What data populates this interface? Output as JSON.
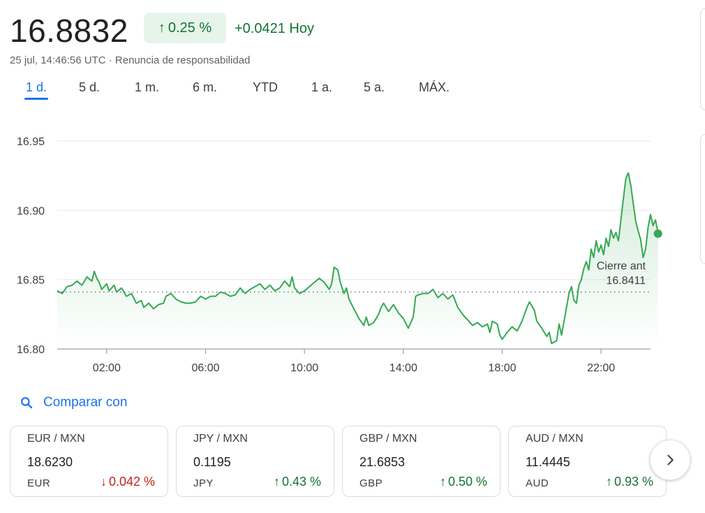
{
  "header": {
    "price": "16.8832",
    "change_pct": "0.25 %",
    "change_abs": "+0.0421 Hoy",
    "timestamp": "25 jul, 14:46:56 UTC · Renuncia de responsabilidad"
  },
  "tabs": [
    {
      "label": "1 d.",
      "active": true
    },
    {
      "label": "5 d.",
      "active": false
    },
    {
      "label": "1 m.",
      "active": false
    },
    {
      "label": "6 m.",
      "active": false
    },
    {
      "label": "YTD",
      "active": false
    },
    {
      "label": "1 a.",
      "active": false
    },
    {
      "label": "5 a.",
      "active": false
    },
    {
      "label": "MÁX.",
      "active": false
    }
  ],
  "chart_data": {
    "type": "line",
    "x_ticks": [
      "02:00",
      "06:00",
      "10:00",
      "14:00",
      "18:00",
      "22:00"
    ],
    "y_ticks": [
      "16.95",
      "16.90",
      "16.85",
      "16.80"
    ],
    "ylim": [
      16.8,
      16.95
    ],
    "x_range_hours": [
      0,
      24
    ],
    "grid": true,
    "line_color": "#34a853",
    "prev_close": {
      "label": "Cierre ant",
      "value": "16.8411",
      "y": 16.8411
    },
    "series": [
      {
        "values": [
          [
            0.0,
            16.842
          ],
          [
            0.2,
            16.84
          ],
          [
            0.4,
            16.845
          ],
          [
            0.6,
            16.846
          ],
          [
            0.8,
            16.849
          ],
          [
            1.0,
            16.846
          ],
          [
            1.2,
            16.852
          ],
          [
            1.4,
            16.849
          ],
          [
            1.5,
            16.856
          ],
          [
            1.6,
            16.851
          ],
          [
            1.7,
            16.848
          ],
          [
            1.8,
            16.843
          ],
          [
            2.0,
            16.847
          ],
          [
            2.1,
            16.842
          ],
          [
            2.3,
            16.846
          ],
          [
            2.4,
            16.841
          ],
          [
            2.6,
            16.844
          ],
          [
            2.8,
            16.838
          ],
          [
            3.0,
            16.84
          ],
          [
            3.2,
            16.833
          ],
          [
            3.4,
            16.835
          ],
          [
            3.5,
            16.83
          ],
          [
            3.7,
            16.833
          ],
          [
            3.9,
            16.829
          ],
          [
            4.1,
            16.832
          ],
          [
            4.3,
            16.833
          ],
          [
            4.4,
            16.838
          ],
          [
            4.6,
            16.84
          ],
          [
            4.8,
            16.836
          ],
          [
            5.0,
            16.834
          ],
          [
            5.2,
            16.833
          ],
          [
            5.4,
            16.833
          ],
          [
            5.6,
            16.834
          ],
          [
            5.8,
            16.838
          ],
          [
            6.0,
            16.836
          ],
          [
            6.2,
            16.838
          ],
          [
            6.4,
            16.838
          ],
          [
            6.6,
            16.841
          ],
          [
            6.8,
            16.84
          ],
          [
            7.0,
            16.838
          ],
          [
            7.2,
            16.839
          ],
          [
            7.4,
            16.844
          ],
          [
            7.6,
            16.84
          ],
          [
            7.8,
            16.843
          ],
          [
            8.0,
            16.845
          ],
          [
            8.2,
            16.847
          ],
          [
            8.4,
            16.843
          ],
          [
            8.6,
            16.846
          ],
          [
            8.8,
            16.842
          ],
          [
            9.0,
            16.844
          ],
          [
            9.2,
            16.849
          ],
          [
            9.4,
            16.845
          ],
          [
            9.5,
            16.852
          ],
          [
            9.6,
            16.844
          ],
          [
            9.8,
            16.84
          ],
          [
            10.0,
            16.842
          ],
          [
            10.2,
            16.845
          ],
          [
            10.4,
            16.848
          ],
          [
            10.6,
            16.851
          ],
          [
            10.8,
            16.848
          ],
          [
            11.0,
            16.843
          ],
          [
            11.1,
            16.847
          ],
          [
            11.2,
            16.859
          ],
          [
            11.35,
            16.857
          ],
          [
            11.45,
            16.848
          ],
          [
            11.6,
            16.84
          ],
          [
            11.7,
            16.844
          ],
          [
            11.8,
            16.836
          ],
          [
            12.0,
            16.829
          ],
          [
            12.2,
            16.822
          ],
          [
            12.4,
            16.817
          ],
          [
            12.5,
            16.823
          ],
          [
            12.6,
            16.817
          ],
          [
            12.8,
            16.819
          ],
          [
            13.0,
            16.825
          ],
          [
            13.1,
            16.83
          ],
          [
            13.2,
            16.833
          ],
          [
            13.4,
            16.827
          ],
          [
            13.6,
            16.832
          ],
          [
            13.8,
            16.826
          ],
          [
            14.0,
            16.822
          ],
          [
            14.2,
            16.815
          ],
          [
            14.4,
            16.823
          ],
          [
            14.5,
            16.838
          ],
          [
            14.6,
            16.839
          ],
          [
            14.8,
            16.84
          ],
          [
            15.0,
            16.84
          ],
          [
            15.2,
            16.843
          ],
          [
            15.4,
            16.837
          ],
          [
            15.6,
            16.84
          ],
          [
            15.8,
            16.836
          ],
          [
            16.0,
            16.839
          ],
          [
            16.2,
            16.83
          ],
          [
            16.4,
            16.825
          ],
          [
            16.6,
            16.821
          ],
          [
            16.8,
            16.817
          ],
          [
            17.0,
            16.819
          ],
          [
            17.2,
            16.816
          ],
          [
            17.4,
            16.818
          ],
          [
            17.5,
            16.812
          ],
          [
            17.6,
            16.82
          ],
          [
            17.8,
            16.818
          ],
          [
            17.9,
            16.81
          ],
          [
            18.0,
            16.807
          ],
          [
            18.2,
            16.812
          ],
          [
            18.4,
            16.816
          ],
          [
            18.6,
            16.813
          ],
          [
            18.8,
            16.82
          ],
          [
            19.0,
            16.83
          ],
          [
            19.1,
            16.834
          ],
          [
            19.3,
            16.828
          ],
          [
            19.4,
            16.82
          ],
          [
            19.6,
            16.815
          ],
          [
            19.8,
            16.809
          ],
          [
            19.9,
            16.812
          ],
          [
            20.0,
            16.804
          ],
          [
            20.2,
            16.806
          ],
          [
            20.3,
            16.818
          ],
          [
            20.4,
            16.81
          ],
          [
            20.6,
            16.83
          ],
          [
            20.7,
            16.84
          ],
          [
            20.8,
            16.845
          ],
          [
            20.9,
            16.835
          ],
          [
            21.0,
            16.833
          ],
          [
            21.1,
            16.846
          ],
          [
            21.2,
            16.85
          ],
          [
            21.3,
            16.858
          ],
          [
            21.4,
            16.863
          ],
          [
            21.5,
            16.857
          ],
          [
            21.6,
            16.872
          ],
          [
            21.7,
            16.866
          ],
          [
            21.8,
            16.878
          ],
          [
            21.9,
            16.87
          ],
          [
            22.0,
            16.875
          ],
          [
            22.1,
            16.868
          ],
          [
            22.2,
            16.88
          ],
          [
            22.3,
            16.874
          ],
          [
            22.4,
            16.886
          ],
          [
            22.5,
            16.88
          ],
          [
            22.6,
            16.884
          ],
          [
            22.7,
            16.878
          ],
          [
            22.8,
            16.893
          ],
          [
            22.9,
            16.908
          ],
          [
            23.0,
            16.923
          ],
          [
            23.1,
            16.927
          ],
          [
            23.2,
            16.918
          ],
          [
            23.3,
            16.905
          ],
          [
            23.4,
            16.892
          ],
          [
            23.5,
            16.885
          ],
          [
            23.6,
            16.879
          ],
          [
            23.7,
            16.866
          ],
          [
            23.8,
            16.872
          ],
          [
            23.9,
            16.888
          ],
          [
            24.0,
            16.897
          ],
          [
            24.1,
            16.889
          ],
          [
            24.2,
            16.893
          ],
          [
            24.3,
            16.884
          ]
        ]
      }
    ],
    "last_point": [
      24.3,
      16.8832
    ]
  },
  "compare": {
    "label": "Comparar con"
  },
  "cards": [
    {
      "pair": "EUR / MXN",
      "rate": "18.6230",
      "currency": "EUR",
      "change": "0.042 %",
      "direction": "down"
    },
    {
      "pair": "JPY / MXN",
      "rate": "0.1195",
      "currency": "JPY",
      "change": "0.43 %",
      "direction": "up"
    },
    {
      "pair": "GBP / MXN",
      "rate": "21.6853",
      "currency": "GBP",
      "change": "0.50 %",
      "direction": "up"
    },
    {
      "pair": "AUD / MXN",
      "rate": "11.4445",
      "currency": "AUD",
      "change": "0.93 %",
      "direction": "up"
    }
  ]
}
